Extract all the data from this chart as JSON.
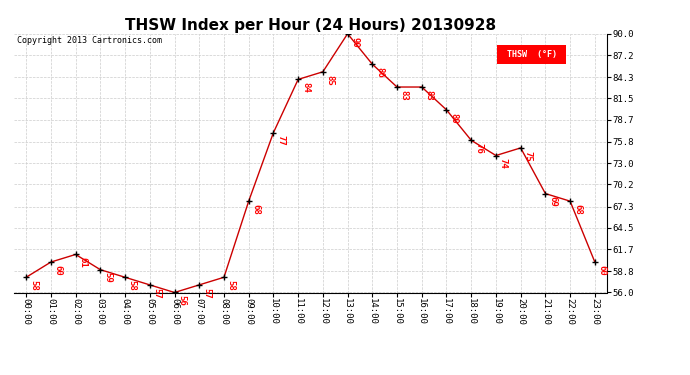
{
  "title": "THSW Index per Hour (24 Hours) 20130928",
  "copyright": "Copyright 2013 Cartronics.com",
  "legend_label": "THSW  (°F)",
  "hours": [
    0,
    1,
    2,
    3,
    4,
    5,
    6,
    7,
    8,
    9,
    10,
    11,
    12,
    13,
    14,
    15,
    16,
    17,
    18,
    19,
    20,
    21,
    22,
    23
  ],
  "values": [
    58,
    60,
    61,
    59,
    58,
    57,
    56,
    57,
    58,
    68,
    77,
    84,
    85,
    90,
    86,
    83,
    83,
    80,
    76,
    74,
    75,
    69,
    68,
    60
  ],
  "xlabels": [
    "00:00",
    "01:00",
    "02:00",
    "03:00",
    "04:00",
    "05:00",
    "06:00",
    "07:00",
    "08:00",
    "09:00",
    "10:00",
    "11:00",
    "12:00",
    "13:00",
    "14:00",
    "15:00",
    "16:00",
    "17:00",
    "18:00",
    "19:00",
    "20:00",
    "21:00",
    "22:00",
    "23:00"
  ],
  "ylim": [
    56.0,
    90.0
  ],
  "yticks": [
    56.0,
    58.8,
    61.7,
    64.5,
    67.3,
    70.2,
    73.0,
    75.8,
    78.7,
    81.5,
    84.3,
    87.2,
    90.0
  ],
  "ytick_labels": [
    "56.0",
    "58.8",
    "61.7",
    "64.5",
    "67.3",
    "70.2",
    "73.0",
    "75.8",
    "78.7",
    "81.5",
    "84.3",
    "87.2",
    "90.0"
  ],
  "line_color": "#cc0000",
  "marker_color": "black",
  "label_color": "red",
  "bg_color": "white",
  "grid_color": "#cccccc",
  "title_fontsize": 11,
  "tick_fontsize": 6.5,
  "label_fontsize": 6.5,
  "copyright_fontsize": 6
}
